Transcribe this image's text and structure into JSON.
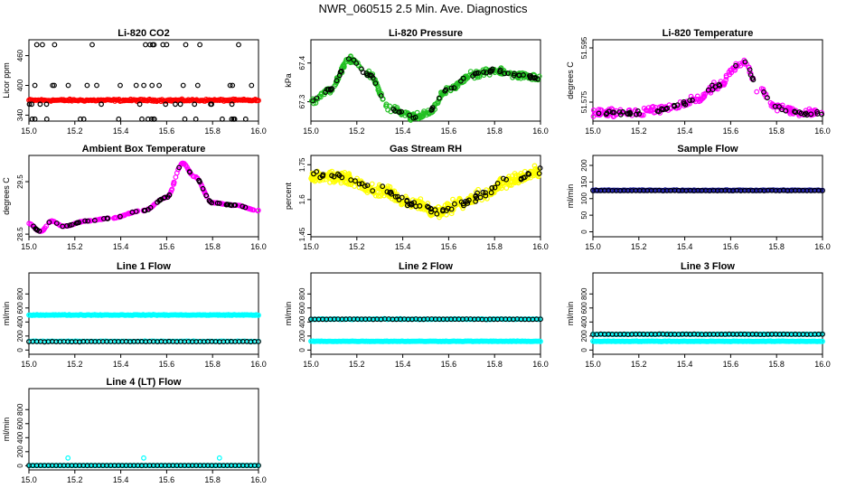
{
  "page": {
    "title": "NWR_060515  2.5 Min. Ave. Diagnostics"
  },
  "chart_data": [
    {
      "type": "scatter",
      "title": "Li-820 CO2",
      "xlabel": "",
      "ylabel": "Licor ppm",
      "xlim": [
        15.0,
        16.0
      ],
      "xticks": [
        "15.0",
        "15.2",
        "15.4",
        "15.6",
        "15.8",
        "16.0"
      ],
      "ylim": [
        328,
        492
      ],
      "yticks": [
        340,
        400,
        460
      ],
      "series": [
        {
          "color": "#ff0000",
          "pattern": "band",
          "base": 370,
          "noise": 3,
          "wave": 0,
          "n": 220
        },
        {
          "color": "#000000",
          "pattern": "levels",
          "levels": [
            332,
            362,
            400,
            482
          ],
          "n": 60
        }
      ]
    },
    {
      "type": "scatter",
      "title": "Li-820 Pressure",
      "xlabel": "",
      "ylabel": "kPa",
      "xlim": [
        15.0,
        16.0
      ],
      "xticks": [
        "15.0",
        "15.2",
        "15.4",
        "15.6",
        "15.8",
        "16.0"
      ],
      "ylim": [
        67.25,
        67.46
      ],
      "yticks": [
        67.3,
        67.4
      ],
      "series": [
        {
          "color": "#22c022",
          "pattern": "curve",
          "curve": [
            [
              15.0,
              67.3
            ],
            [
              15.08,
              67.33
            ],
            [
              15.17,
              67.41
            ],
            [
              15.25,
              67.37
            ],
            [
              15.35,
              67.28
            ],
            [
              15.45,
              67.26
            ],
            [
              15.5,
              67.27
            ],
            [
              15.6,
              67.33
            ],
            [
              15.7,
              67.37
            ],
            [
              15.8,
              67.38
            ],
            [
              15.9,
              67.37
            ],
            [
              16.0,
              67.36
            ]
          ],
          "noise": 0.012,
          "n": 360
        },
        {
          "color": "#000000",
          "pattern": "curve",
          "curve": [
            [
              15.0,
              67.3
            ],
            [
              15.08,
              67.33
            ],
            [
              15.17,
              67.41
            ],
            [
              15.25,
              67.37
            ],
            [
              15.35,
              67.28
            ],
            [
              15.45,
              67.26
            ],
            [
              15.5,
              67.27
            ],
            [
              15.6,
              67.33
            ],
            [
              15.7,
              67.37
            ],
            [
              15.8,
              67.38
            ],
            [
              15.9,
              67.37
            ],
            [
              16.0,
              67.36
            ]
          ],
          "noise": 0.006,
          "n": 70
        }
      ]
    },
    {
      "type": "scatter",
      "title": "Li-820 Temperature",
      "xlabel": "",
      "ylabel": "degrees C",
      "xlim": [
        15.0,
        16.0
      ],
      "xticks": [
        "15.0",
        "15.2",
        "15.4",
        "15.6",
        "15.8",
        "16.0"
      ],
      "ylim": [
        51.568,
        51.598
      ],
      "yticks": [
        51.575,
        51.595
      ],
      "series": [
        {
          "color": "#ff00ff",
          "pattern": "curve",
          "curve": [
            [
              15.0,
              51.571
            ],
            [
              15.2,
              51.571
            ],
            [
              15.35,
              51.573
            ],
            [
              15.45,
              51.576
            ],
            [
              15.55,
              51.581
            ],
            [
              15.62,
              51.588
            ],
            [
              15.66,
              51.59
            ],
            [
              15.72,
              51.58
            ],
            [
              15.8,
              51.573
            ],
            [
              15.9,
              51.571
            ],
            [
              16.0,
              51.571
            ]
          ],
          "noise": 0.0022,
          "n": 260
        },
        {
          "color": "#000000",
          "pattern": "curve",
          "curve": [
            [
              15.0,
              51.571
            ],
            [
              15.2,
              51.571
            ],
            [
              15.35,
              51.573
            ],
            [
              15.45,
              51.576
            ],
            [
              15.55,
              51.581
            ],
            [
              15.62,
              51.588
            ],
            [
              15.66,
              51.59
            ],
            [
              15.72,
              51.58
            ],
            [
              15.8,
              51.573
            ],
            [
              15.9,
              51.571
            ],
            [
              16.0,
              51.571
            ]
          ],
          "noise": 0.0015,
          "n": 60
        }
      ]
    },
    {
      "type": "scatter",
      "title": "Ambient Box Temperature",
      "xlabel": "",
      "ylabel": "degrees C",
      "xlim": [
        15.0,
        16.0
      ],
      "xticks": [
        "15.0",
        "15.2",
        "15.4",
        "15.6",
        "15.8",
        "16.0"
      ],
      "ylim": [
        28.45,
        30.0
      ],
      "yticks": [
        28.5,
        29.5
      ],
      "series": [
        {
          "color": "#ff00ff",
          "pattern": "curve",
          "curve": [
            [
              15.0,
              28.7
            ],
            [
              15.05,
              28.55
            ],
            [
              15.1,
              28.75
            ],
            [
              15.15,
              28.65
            ],
            [
              15.25,
              28.75
            ],
            [
              15.35,
              28.8
            ],
            [
              15.5,
              28.95
            ],
            [
              15.6,
              29.2
            ],
            [
              15.67,
              29.85
            ],
            [
              15.72,
              29.6
            ],
            [
              15.8,
              29.1
            ],
            [
              15.9,
              29.05
            ],
            [
              16.0,
              28.95
            ]
          ],
          "noise": 0.01,
          "n": 300
        },
        {
          "color": "#000000",
          "pattern": "curve",
          "curve": [
            [
              15.0,
              28.7
            ],
            [
              15.05,
              28.55
            ],
            [
              15.1,
              28.75
            ],
            [
              15.15,
              28.65
            ],
            [
              15.25,
              28.75
            ],
            [
              15.35,
              28.8
            ],
            [
              15.5,
              28.95
            ],
            [
              15.6,
              29.2
            ],
            [
              15.67,
              29.85
            ],
            [
              15.72,
              29.6
            ],
            [
              15.8,
              29.1
            ],
            [
              15.9,
              29.05
            ],
            [
              16.0,
              28.95
            ]
          ],
          "noise": 0.01,
          "n": 60
        }
      ]
    },
    {
      "type": "scatter",
      "title": "Gas Stream RH",
      "xlabel": "",
      "ylabel": "percent",
      "xlim": [
        15.0,
        16.0
      ],
      "xticks": [
        "15.0",
        "15.2",
        "15.4",
        "15.6",
        "15.8",
        "16.0"
      ],
      "ylim": [
        1.44,
        1.79
      ],
      "yticks": [
        1.45,
        1.6,
        1.75
      ],
      "series": [
        {
          "color": "#ffff00",
          "pattern": "curve",
          "curve": [
            [
              15.0,
              1.7
            ],
            [
              15.1,
              1.7
            ],
            [
              15.3,
              1.64
            ],
            [
              15.45,
              1.58
            ],
            [
              15.55,
              1.55
            ],
            [
              15.65,
              1.58
            ],
            [
              15.75,
              1.62
            ],
            [
              15.85,
              1.68
            ],
            [
              16.0,
              1.72
            ]
          ],
          "noise": 0.035,
          "n": 520
        },
        {
          "color": "#000000",
          "pattern": "curve",
          "curve": [
            [
              15.0,
              1.7
            ],
            [
              15.1,
              1.7
            ],
            [
              15.3,
              1.64
            ],
            [
              15.45,
              1.58
            ],
            [
              15.55,
              1.55
            ],
            [
              15.65,
              1.58
            ],
            [
              15.75,
              1.62
            ],
            [
              15.85,
              1.68
            ],
            [
              16.0,
              1.72
            ]
          ],
          "noise": 0.025,
          "n": 80
        }
      ]
    },
    {
      "type": "scatter",
      "title": "Sample Flow",
      "xlabel": "",
      "ylabel": "ml/min",
      "xlim": [
        15.0,
        16.0
      ],
      "xticks": [
        "15.0",
        "15.2",
        "15.4",
        "15.6",
        "15.8",
        "16.0"
      ],
      "ylim": [
        -15,
        230
      ],
      "yticks": [
        0,
        50,
        100,
        150,
        200
      ],
      "series": [
        {
          "color": "#1a1aaa",
          "pattern": "band",
          "base": 125,
          "noise": 1.5,
          "wave": 0,
          "n": 160
        },
        {
          "color": "#000000",
          "pattern": "band",
          "base": 124,
          "noise": 1,
          "wave": 0,
          "n": 60
        }
      ]
    },
    {
      "type": "scatter",
      "title": "Line 1 Flow",
      "xlabel": "",
      "ylabel": "ml/min",
      "xlim": [
        15.0,
        16.0
      ],
      "xticks": [
        "15.0",
        "15.2",
        "15.4",
        "15.6",
        "15.8",
        "16.0"
      ],
      "ylim": [
        -60,
        1100
      ],
      "yticks": [
        0,
        200,
        400,
        600,
        800
      ],
      "series": [
        {
          "color": "#00ffff",
          "pattern": "band",
          "base": 500,
          "noise": 8,
          "wave": 0,
          "n": 200
        },
        {
          "color": "#00ffff",
          "pattern": "band",
          "base": 125,
          "noise": 6,
          "wave": 0,
          "n": 100
        },
        {
          "color": "#000000",
          "pattern": "band",
          "base": 120,
          "noise": 4,
          "wave": 0,
          "n": 60
        }
      ]
    },
    {
      "type": "scatter",
      "title": "Line 2 Flow",
      "xlabel": "",
      "ylabel": "ml/min",
      "xlim": [
        15.0,
        16.0
      ],
      "xticks": [
        "15.0",
        "15.2",
        "15.4",
        "15.6",
        "15.8",
        "16.0"
      ],
      "ylim": [
        -60,
        1100
      ],
      "yticks": [
        0,
        200,
        400,
        600,
        800
      ],
      "series": [
        {
          "color": "#00ffff",
          "pattern": "band",
          "base": 440,
          "noise": 8,
          "wave": 0,
          "n": 160
        },
        {
          "color": "#00ffff",
          "pattern": "band",
          "base": 125,
          "noise": 6,
          "wave": 0,
          "n": 200
        },
        {
          "color": "#000000",
          "pattern": "band",
          "base": 440,
          "noise": 5,
          "wave": 0,
          "n": 60
        }
      ]
    },
    {
      "type": "scatter",
      "title": "Line 3 Flow",
      "xlabel": "",
      "ylabel": "ml/min",
      "xlim": [
        15.0,
        16.0
      ],
      "xticks": [
        "15.0",
        "15.2",
        "15.4",
        "15.6",
        "15.8",
        "16.0"
      ],
      "ylim": [
        -60,
        1100
      ],
      "yticks": [
        0,
        200,
        400,
        600,
        800
      ],
      "series": [
        {
          "color": "#00ffff",
          "pattern": "band",
          "base": 225,
          "noise": 6,
          "wave": 0,
          "n": 160
        },
        {
          "color": "#00ffff",
          "pattern": "band",
          "base": 125,
          "noise": 6,
          "wave": 0,
          "n": 200
        },
        {
          "color": "#000000",
          "pattern": "band",
          "base": 225,
          "noise": 4,
          "wave": 0,
          "n": 60
        }
      ]
    },
    {
      "type": "scatter",
      "title": "Line 4 (LT) Flow",
      "xlabel": "",
      "ylabel": "ml/min",
      "xlim": [
        15.0,
        16.0
      ],
      "xticks": [
        "15.0",
        "15.2",
        "15.4",
        "15.6",
        "15.8",
        "16.0"
      ],
      "ylim": [
        -60,
        1100
      ],
      "yticks": [
        0,
        200,
        400,
        600,
        800
      ],
      "series": [
        {
          "color": "#00ffff",
          "pattern": "band",
          "base": 3,
          "noise": 2,
          "wave": 0,
          "n": 160
        },
        {
          "color": "#000000",
          "pattern": "band",
          "base": 3,
          "noise": 1,
          "wave": 0,
          "n": 60
        },
        {
          "color": "#00ffff",
          "pattern": "points",
          "x": [
            15.17,
            15.5,
            15.83
          ],
          "y": [
            110,
            110,
            110
          ]
        }
      ]
    }
  ]
}
